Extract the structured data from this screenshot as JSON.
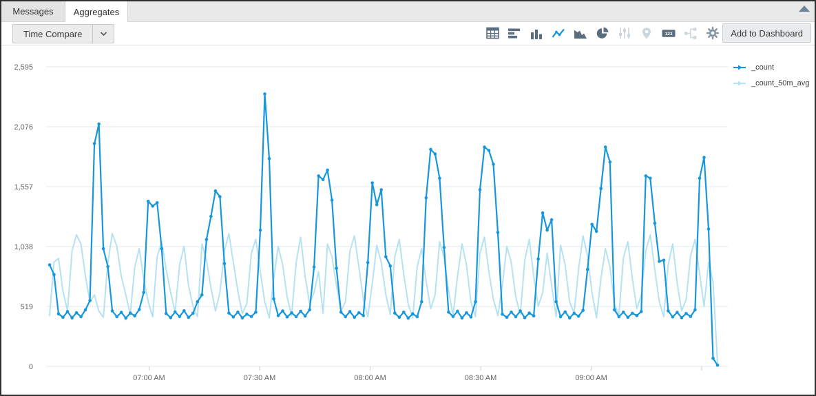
{
  "tabs": [
    {
      "label": "Messages",
      "active": false
    },
    {
      "label": "Aggregates",
      "active": true
    }
  ],
  "toolbar": {
    "time_compare_label": "Time Compare",
    "add_to_dashboard_label": "Add to Dashboard",
    "icons": [
      {
        "name": "table-icon",
        "state": "normal"
      },
      {
        "name": "bar-chart-horizontal-icon",
        "state": "normal"
      },
      {
        "name": "column-chart-icon",
        "state": "normal"
      },
      {
        "name": "line-chart-icon",
        "state": "active"
      },
      {
        "name": "area-chart-icon",
        "state": "normal"
      },
      {
        "name": "pie-chart-icon",
        "state": "normal"
      },
      {
        "name": "sliders-icon",
        "state": "disabled"
      },
      {
        "name": "map-pin-icon",
        "state": "disabled"
      },
      {
        "name": "single-value-icon",
        "state": "normal",
        "glyph": "123"
      },
      {
        "name": "node-graph-icon",
        "state": "disabled"
      },
      {
        "name": "settings-gear-icon",
        "state": "muted"
      }
    ]
  },
  "colors": {
    "accent_line": "#1797db",
    "avg_line": "#b5e2f0",
    "icon_normal": "#5b6e7f",
    "icon_disabled": "#ccd6dd",
    "gridline": "#e3e9ef",
    "tick_text": "#666666"
  },
  "chart_data": {
    "type": "line",
    "title": "",
    "xlabel": "",
    "ylabel": "",
    "ylim": [
      0,
      2595
    ],
    "grid": "horizontal",
    "legend_position": "right",
    "x_start": "6:33 AM",
    "x_interval_seconds": 73,
    "y_ticks": [
      {
        "value": 2595,
        "label": "2,595"
      },
      {
        "value": 2076,
        "label": "2,076"
      },
      {
        "value": 1557,
        "label": "1,557"
      },
      {
        "value": 1038,
        "label": "1,038"
      },
      {
        "value": 519,
        "label": "519"
      },
      {
        "value": 0,
        "label": "0"
      }
    ],
    "x_ticks": [
      {
        "offset_min": 27,
        "label": "07:00 AM"
      },
      {
        "offset_min": 57,
        "label": "07:30 AM"
      },
      {
        "offset_min": 87,
        "label": "08:00 AM"
      },
      {
        "offset_min": 117,
        "label": "08:30 AM"
      },
      {
        "offset_min": 147,
        "label": "09:00 AM"
      },
      {
        "offset_min": 177,
        "label": ""
      }
    ],
    "series": [
      {
        "name": "_count",
        "color": "#1797db",
        "markers": true,
        "values": [
          880,
          795,
          455,
          425,
          475,
          420,
          465,
          430,
          490,
          570,
          1930,
          2100,
          1020,
          865,
          480,
          430,
          468,
          418,
          462,
          438,
          492,
          640,
          1430,
          1388,
          1418,
          1020,
          458,
          422,
          472,
          432,
          482,
          424,
          460,
          560,
          620,
          1100,
          1300,
          1520,
          1470,
          890,
          462,
          428,
          470,
          420,
          452,
          432,
          470,
          1180,
          2360,
          1800,
          585,
          440,
          480,
          428,
          464,
          430,
          478,
          436,
          490,
          860,
          1650,
          1618,
          1700,
          1440,
          850,
          470,
          430,
          475,
          425,
          465,
          440,
          900,
          1590,
          1400,
          1530,
          950,
          870,
          462,
          425,
          470,
          418,
          455,
          430,
          560,
          1460,
          1880,
          1840,
          1630,
          1030,
          470,
          432,
          478,
          420,
          465,
          428,
          560,
          1530,
          1900,
          1870,
          1750,
          1160,
          452,
          425,
          470,
          430,
          480,
          422,
          462,
          438,
          930,
          1330,
          1180,
          1270,
          560,
          430,
          472,
          420,
          460,
          435,
          485,
          840,
          1230,
          1170,
          1540,
          1900,
          1770,
          490,
          430,
          470,
          425,
          460,
          440,
          475,
          1650,
          1630,
          1240,
          910,
          920,
          480,
          428,
          468,
          422,
          458,
          432,
          490,
          1630,
          1810,
          1190,
          70,
          10
        ]
      },
      {
        "name": "_count_50m_avg",
        "color": "#b5e2f0",
        "markers": false,
        "values": [
          440,
          905,
          935,
          650,
          480,
          1000,
          1140,
          1060,
          780,
          560,
          620,
          480,
          425,
          900,
          1150,
          1040,
          780,
          620,
          450,
          860,
          1020,
          760,
          560,
          430,
          950,
          1080,
          840,
          640,
          470,
          880,
          1040,
          700,
          520,
          430,
          1060,
          920,
          680,
          480,
          640,
          1000,
          1150,
          900,
          650,
          460,
          540,
          980,
          1100,
          820,
          560,
          420,
          760,
          1040,
          880,
          600,
          440,
          900,
          1120,
          780,
          540,
          640,
          820,
          460,
          1060,
          950,
          700,
          480,
          560,
          1000,
          1130,
          860,
          580,
          430,
          720,
          1050,
          900,
          620,
          450,
          950,
          1100,
          800,
          540,
          420,
          860,
          1020,
          740,
          500,
          620,
          1080,
          940,
          660,
          440,
          780,
          1060,
          880,
          560,
          430,
          980,
          1120,
          820,
          580,
          440,
          700,
          1040,
          900,
          600,
          450,
          920,
          1100,
          780,
          520,
          640,
          980,
          700,
          430,
          1050,
          880,
          560,
          460,
          840,
          1130,
          960,
          640,
          420,
          760,
          1020,
          860,
          540,
          440,
          940,
          1080,
          760,
          500,
          620,
          1000,
          1140,
          840,
          560,
          430,
          880,
          1060,
          720,
          480,
          580,
          960,
          1100,
          800,
          520,
          900,
          730,
          30
        ]
      }
    ]
  }
}
